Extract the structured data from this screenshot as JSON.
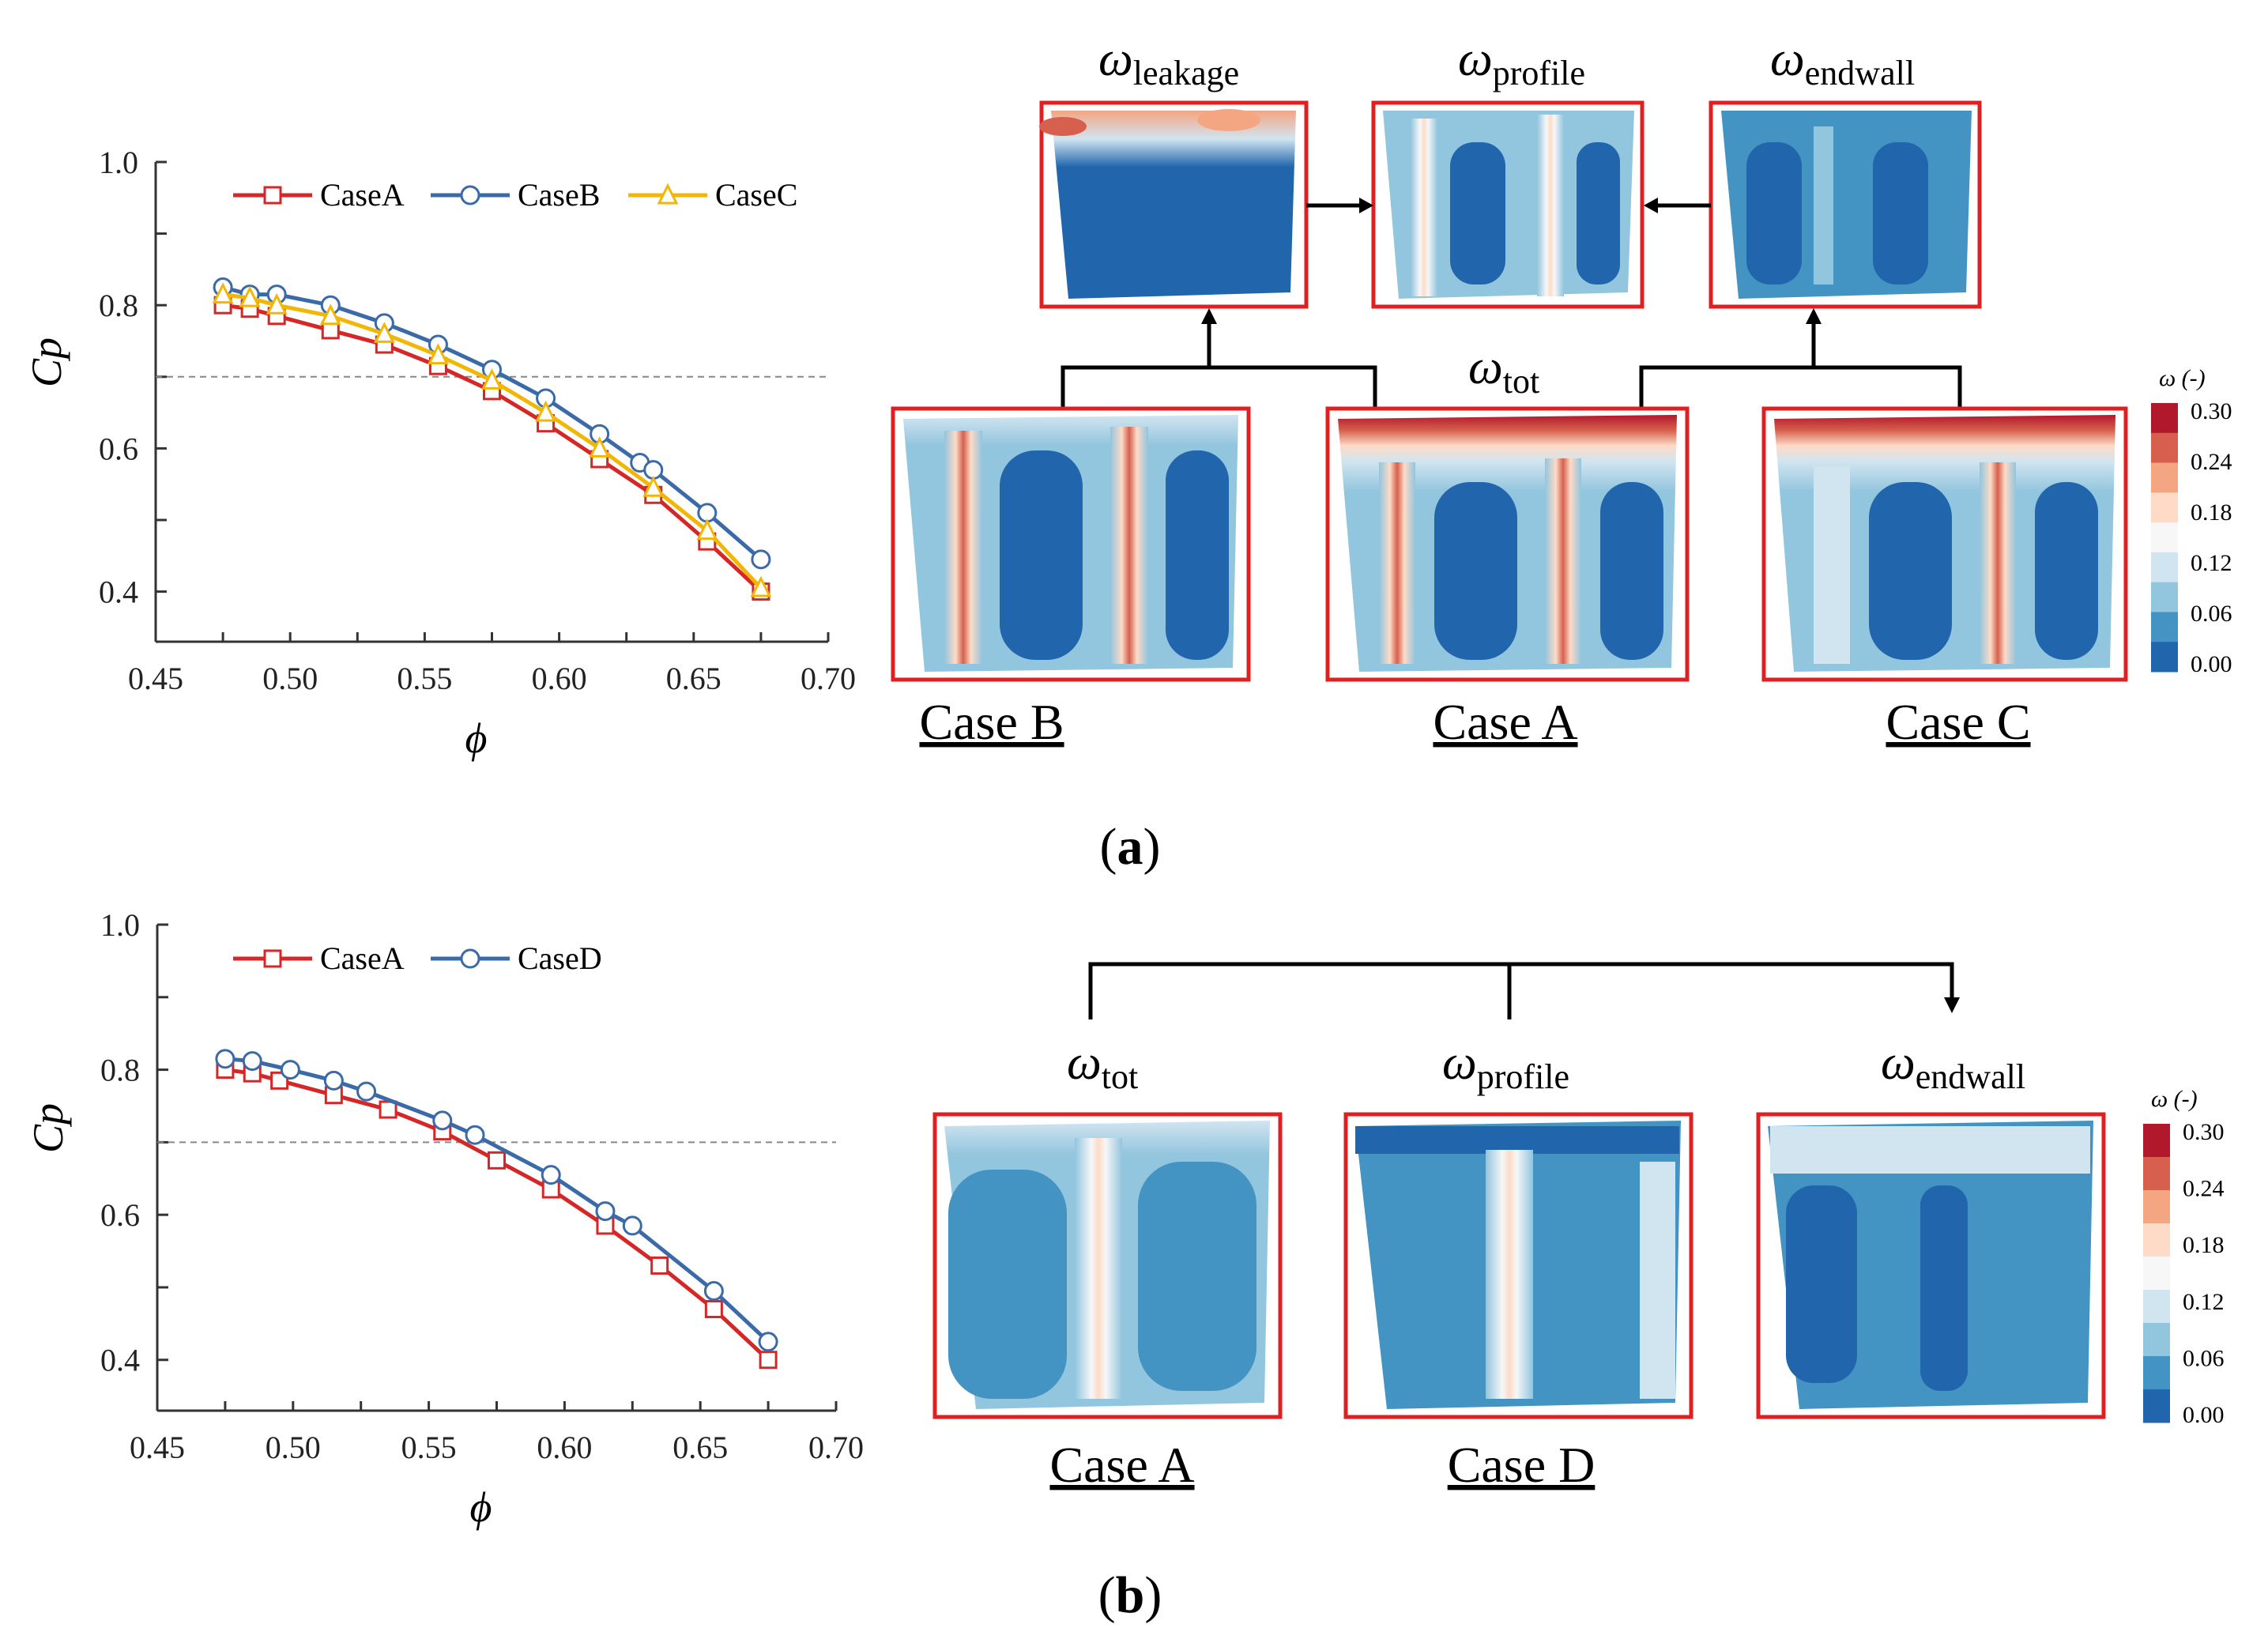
{
  "figure": {
    "panel_a_label": "(a)",
    "panel_b_label": "(b)",
    "panel_a_letter": "a",
    "panel_b_letter": "b",
    "colorbar_title": "ω (-)",
    "colorbar_ticks": [
      "0.30",
      "0.24",
      "0.18",
      "0.12",
      "0.06",
      "0.00"
    ],
    "colorbar_colors": [
      "#b2182b",
      "#d6604d",
      "#f4a582",
      "#fddbc7",
      "#f7f7f7",
      "#d1e5f0",
      "#92c5de",
      "#4393c3",
      "#2166ac"
    ],
    "omega_symbol": "ω",
    "top_flow": {
      "labels": [
        {
          "sub": "leakage"
        },
        {
          "sub": "profile"
        },
        {
          "sub": "endwall"
        },
        {
          "sub": "tot"
        }
      ],
      "cases": [
        "Case B",
        "Case A",
        "Case C"
      ]
    },
    "bottom_flow": {
      "labels": [
        {
          "sub": "tot"
        },
        {
          "sub": "profile"
        },
        {
          "sub": "endwall"
        }
      ],
      "cases": [
        "Case A",
        "Case D"
      ]
    }
  },
  "colors": {
    "caseA": "#d62728",
    "caseB": "#3b6aa8",
    "caseC": "#f2b705",
    "frame": "#e02020"
  },
  "chart_data": [
    {
      "type": "line",
      "panel": "a",
      "xlabel": "ϕ",
      "ylabel": "Cp",
      "xlim": [
        0.45,
        0.7
      ],
      "ylim": [
        0.33,
        1.0
      ],
      "xticks": [
        "0.45",
        "0.50",
        "0.55",
        "0.60",
        "0.65",
        "0.70"
      ],
      "yticks": [
        "0.4",
        "0.6",
        "0.8",
        "1.0"
      ],
      "reference_line_y": 0.7,
      "series": [
        {
          "name": "CaseA",
          "marker": "square",
          "x": [
            0.475,
            0.485,
            0.495,
            0.515,
            0.535,
            0.555,
            0.575,
            0.595,
            0.615,
            0.635,
            0.655,
            0.675
          ],
          "y": [
            0.8,
            0.795,
            0.785,
            0.765,
            0.745,
            0.715,
            0.68,
            0.635,
            0.585,
            0.535,
            0.47,
            0.4
          ]
        },
        {
          "name": "CaseB",
          "marker": "circle",
          "x": [
            0.475,
            0.485,
            0.495,
            0.515,
            0.535,
            0.555,
            0.575,
            0.595,
            0.615,
            0.63,
            0.635,
            0.655,
            0.675
          ],
          "y": [
            0.825,
            0.815,
            0.815,
            0.8,
            0.775,
            0.745,
            0.71,
            0.67,
            0.62,
            0.58,
            0.57,
            0.51,
            0.445
          ]
        },
        {
          "name": "CaseC",
          "marker": "triangle",
          "x": [
            0.475,
            0.485,
            0.495,
            0.515,
            0.535,
            0.555,
            0.575,
            0.595,
            0.615,
            0.635,
            0.655,
            0.675
          ],
          "y": [
            0.815,
            0.81,
            0.8,
            0.785,
            0.76,
            0.73,
            0.695,
            0.65,
            0.6,
            0.545,
            0.485,
            0.405
          ]
        }
      ]
    },
    {
      "type": "line",
      "panel": "b",
      "xlabel": "ϕ",
      "ylabel": "Cp",
      "xlim": [
        0.45,
        0.7
      ],
      "ylim": [
        0.33,
        1.0
      ],
      "xticks": [
        "0.45",
        "0.50",
        "0.55",
        "0.60",
        "0.65",
        "0.70"
      ],
      "yticks": [
        "0.4",
        "0.6",
        "0.8",
        "1.0"
      ],
      "reference_line_y": 0.7,
      "series": [
        {
          "name": "CaseA",
          "marker": "square",
          "x": [
            0.475,
            0.485,
            0.495,
            0.515,
            0.535,
            0.555,
            0.575,
            0.595,
            0.615,
            0.635,
            0.655,
            0.675
          ],
          "y": [
            0.8,
            0.795,
            0.785,
            0.765,
            0.745,
            0.715,
            0.675,
            0.635,
            0.585,
            0.53,
            0.47,
            0.4
          ]
        },
        {
          "name": "CaseD",
          "marker": "circle",
          "x": [
            0.475,
            0.485,
            0.499,
            0.515,
            0.527,
            0.555,
            0.567,
            0.595,
            0.615,
            0.625,
            0.655,
            0.675
          ],
          "y": [
            0.815,
            0.812,
            0.8,
            0.785,
            0.77,
            0.73,
            0.71,
            0.655,
            0.605,
            0.585,
            0.495,
            0.425
          ]
        }
      ]
    }
  ]
}
